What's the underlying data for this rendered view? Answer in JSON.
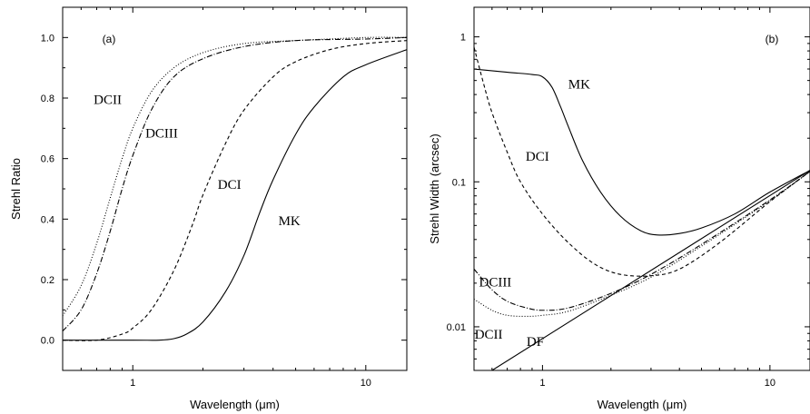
{
  "chart_data": [
    {
      "panel": "(a)",
      "type": "line",
      "xlabel": "Wavelength (μm)",
      "ylabel": "Strehl Ratio",
      "xscale": "log",
      "yscale": "linear",
      "xlim": [
        0.5,
        15
      ],
      "ylim": [
        -0.1,
        1.1
      ],
      "x_ticks": [
        {
          "v": 1,
          "label": "1"
        },
        {
          "v": 10,
          "label": "10"
        }
      ],
      "y_ticks": [
        {
          "v": 0.0,
          "label": "0.0"
        },
        {
          "v": 0.2,
          "label": "0.2"
        },
        {
          "v": 0.4,
          "label": "0.4"
        },
        {
          "v": 0.6,
          "label": "0.6"
        },
        {
          "v": 0.8,
          "label": "0.8"
        },
        {
          "v": 1.0,
          "label": "1.0"
        }
      ],
      "grid": false,
      "series": [
        {
          "name": "DCII",
          "dash": "1,2",
          "points": [
            [
              0.5,
              0.08
            ],
            [
              0.6,
              0.18
            ],
            [
              0.7,
              0.32
            ],
            [
              0.8,
              0.47
            ],
            [
              0.9,
              0.6
            ],
            [
              1.0,
              0.7
            ],
            [
              1.2,
              0.82
            ],
            [
              1.5,
              0.9
            ],
            [
              2.0,
              0.95
            ],
            [
              3.0,
              0.98
            ],
            [
              5.0,
              0.99
            ],
            [
              10.0,
              1.0
            ],
            [
              15.0,
              1.0
            ]
          ]
        },
        {
          "name": "DCIII",
          "dash": "6,2,1,2",
          "points": [
            [
              0.5,
              0.03
            ],
            [
              0.6,
              0.1
            ],
            [
              0.7,
              0.22
            ],
            [
              0.8,
              0.36
            ],
            [
              0.9,
              0.5
            ],
            [
              1.0,
              0.61
            ],
            [
              1.2,
              0.76
            ],
            [
              1.5,
              0.87
            ],
            [
              2.0,
              0.93
            ],
            [
              3.0,
              0.97
            ],
            [
              5.0,
              0.99
            ],
            [
              10.0,
              0.995
            ],
            [
              15.0,
              1.0
            ]
          ]
        },
        {
          "name": "DCI",
          "dash": "4,3",
          "points": [
            [
              0.5,
              0.0
            ],
            [
              0.7,
              0.0
            ],
            [
              0.9,
              0.02
            ],
            [
              1.0,
              0.04
            ],
            [
              1.2,
              0.1
            ],
            [
              1.5,
              0.23
            ],
            [
              1.8,
              0.38
            ],
            [
              2.0,
              0.48
            ],
            [
              2.5,
              0.65
            ],
            [
              3.0,
              0.76
            ],
            [
              4.0,
              0.87
            ],
            [
              5.0,
              0.92
            ],
            [
              7.0,
              0.96
            ],
            [
              10.0,
              0.98
            ],
            [
              15.0,
              0.99
            ]
          ]
        },
        {
          "name": "MK",
          "dash": "",
          "points": [
            [
              0.5,
              0.0
            ],
            [
              1.0,
              0.0
            ],
            [
              1.3,
              0.0
            ],
            [
              1.5,
              0.005
            ],
            [
              1.7,
              0.02
            ],
            [
              2.0,
              0.06
            ],
            [
              2.5,
              0.16
            ],
            [
              3.0,
              0.28
            ],
            [
              3.5,
              0.42
            ],
            [
              4.0,
              0.53
            ],
            [
              5.0,
              0.68
            ],
            [
              6.0,
              0.77
            ],
            [
              8.0,
              0.87
            ],
            [
              10.0,
              0.91
            ],
            [
              15.0,
              0.96
            ]
          ]
        }
      ],
      "curve_labels": [
        {
          "text": "DCII",
          "x": 0.78,
          "y": 0.78
        },
        {
          "text": "DCIII",
          "x": 1.33,
          "y": 0.67
        },
        {
          "text": "DCI",
          "x": 2.6,
          "y": 0.5
        },
        {
          "text": "MK",
          "x": 4.7,
          "y": 0.38
        }
      ]
    },
    {
      "panel": "(b)",
      "type": "line",
      "xlabel": "Wavelength (μm)",
      "ylabel": "Strehl Width (arcsec)",
      "xscale": "log",
      "yscale": "log",
      "xlim": [
        0.5,
        15
      ],
      "ylim": [
        0.005,
        1.6
      ],
      "x_ticks": [
        {
          "v": 1,
          "label": "1"
        },
        {
          "v": 10,
          "label": "10"
        }
      ],
      "y_ticks": [
        {
          "v": 0.01,
          "label": "0.01"
        },
        {
          "v": 0.1,
          "label": "0.1"
        },
        {
          "v": 1,
          "label": "1"
        }
      ],
      "grid": false,
      "series": [
        {
          "name": "MK",
          "dash": "",
          "points": [
            [
              0.5,
              0.6
            ],
            [
              0.7,
              0.57
            ],
            [
              0.9,
              0.55
            ],
            [
              1.0,
              0.53
            ],
            [
              1.1,
              0.45
            ],
            [
              1.2,
              0.33
            ],
            [
              1.3,
              0.24
            ],
            [
              1.5,
              0.14
            ],
            [
              1.8,
              0.085
            ],
            [
              2.2,
              0.058
            ],
            [
              2.7,
              0.046
            ],
            [
              3.2,
              0.043
            ],
            [
              4.0,
              0.044
            ],
            [
              5.0,
              0.048
            ],
            [
              7.0,
              0.06
            ],
            [
              10.0,
              0.085
            ],
            [
              15.0,
              0.12
            ]
          ]
        },
        {
          "name": "DCI",
          "dash": "4,3",
          "points": [
            [
              0.5,
              0.85
            ],
            [
              0.55,
              0.48
            ],
            [
              0.6,
              0.3
            ],
            [
              0.7,
              0.16
            ],
            [
              0.8,
              0.1
            ],
            [
              1.0,
              0.06
            ],
            [
              1.3,
              0.038
            ],
            [
              1.7,
              0.027
            ],
            [
              2.2,
              0.023
            ],
            [
              3.0,
              0.0225
            ],
            [
              4.0,
              0.025
            ],
            [
              6.0,
              0.038
            ],
            [
              10.0,
              0.073
            ],
            [
              15.0,
              0.118
            ]
          ]
        },
        {
          "name": "DCIII",
          "dash": "6,2,1,2",
          "points": [
            [
              0.5,
              0.025
            ],
            [
              0.6,
              0.018
            ],
            [
              0.7,
              0.015
            ],
            [
              0.85,
              0.0135
            ],
            [
              1.0,
              0.013
            ],
            [
              1.3,
              0.0135
            ],
            [
              2.0,
              0.017
            ],
            [
              3.0,
              0.023
            ],
            [
              5.0,
              0.037
            ],
            [
              10.0,
              0.075
            ],
            [
              15.0,
              0.118
            ]
          ]
        },
        {
          "name": "DCII",
          "dash": "1,2",
          "points": [
            [
              0.5,
              0.0155
            ],
            [
              0.6,
              0.013
            ],
            [
              0.7,
              0.012
            ],
            [
              0.85,
              0.0118
            ],
            [
              1.0,
              0.012
            ],
            [
              1.3,
              0.0128
            ],
            [
              2.0,
              0.0165
            ],
            [
              3.0,
              0.022
            ],
            [
              5.0,
              0.036
            ],
            [
              10.0,
              0.074
            ],
            [
              15.0,
              0.118
            ]
          ]
        },
        {
          "name": "DF",
          "dash": "",
          "points": [
            [
              0.6,
              0.005
            ],
            [
              15.0,
              0.12
            ]
          ]
        }
      ],
      "curve_labels": [
        {
          "text": "MK",
          "x": 1.45,
          "y": 0.44
        },
        {
          "text": "DCI",
          "x": 0.95,
          "y": 0.14
        },
        {
          "text": "DCIII",
          "x": 0.62,
          "y": 0.019
        },
        {
          "text": "DCII",
          "x": 0.58,
          "y": 0.0083
        },
        {
          "text": "DF",
          "x": 0.93,
          "y": 0.0074
        }
      ]
    }
  ]
}
